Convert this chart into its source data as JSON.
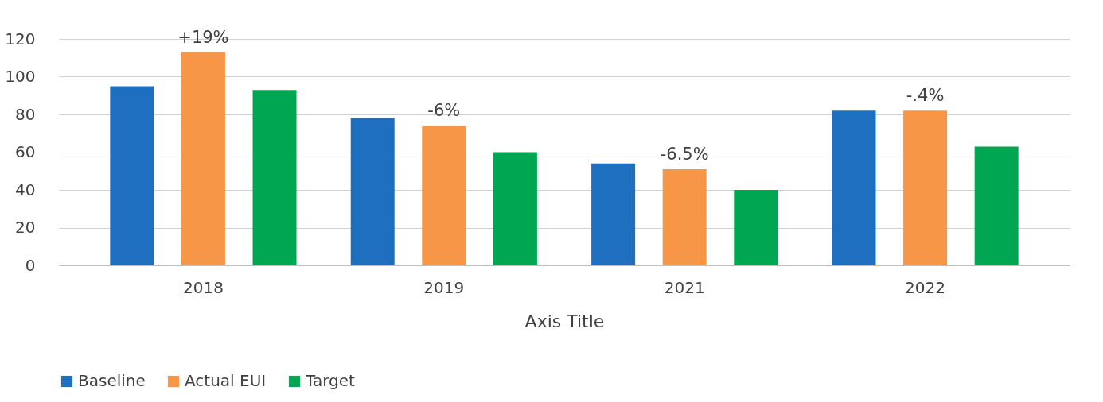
{
  "chart_data": {
    "type": "bar",
    "xlabel": "Axis Title",
    "categories": [
      "2018",
      "2019",
      "2021",
      "2022"
    ],
    "series": [
      {
        "name": "Baseline",
        "color": "#1f6fc0",
        "values": [
          95,
          78,
          54,
          82
        ]
      },
      {
        "name": "Actual EUI",
        "color": "#f79646",
        "values": [
          113,
          74,
          51,
          82
        ]
      },
      {
        "name": "Target",
        "color": "#00a651",
        "values": [
          93,
          60,
          40,
          63
        ]
      }
    ],
    "ylim": [
      0,
      120
    ],
    "yticks": [
      0,
      20,
      40,
      60,
      80,
      100,
      120
    ],
    "grid": "y",
    "legend": "bottom",
    "annotations": [
      {
        "text": "+19%",
        "x": "2018",
        "y": 113
      },
      {
        "text": "-6%",
        "x": "2019",
        "y": 74
      },
      {
        "text": "-6.5%",
        "x": "2021",
        "y": 51
      },
      {
        "text": "-.4%",
        "x": "2022",
        "y": 82
      }
    ]
  }
}
